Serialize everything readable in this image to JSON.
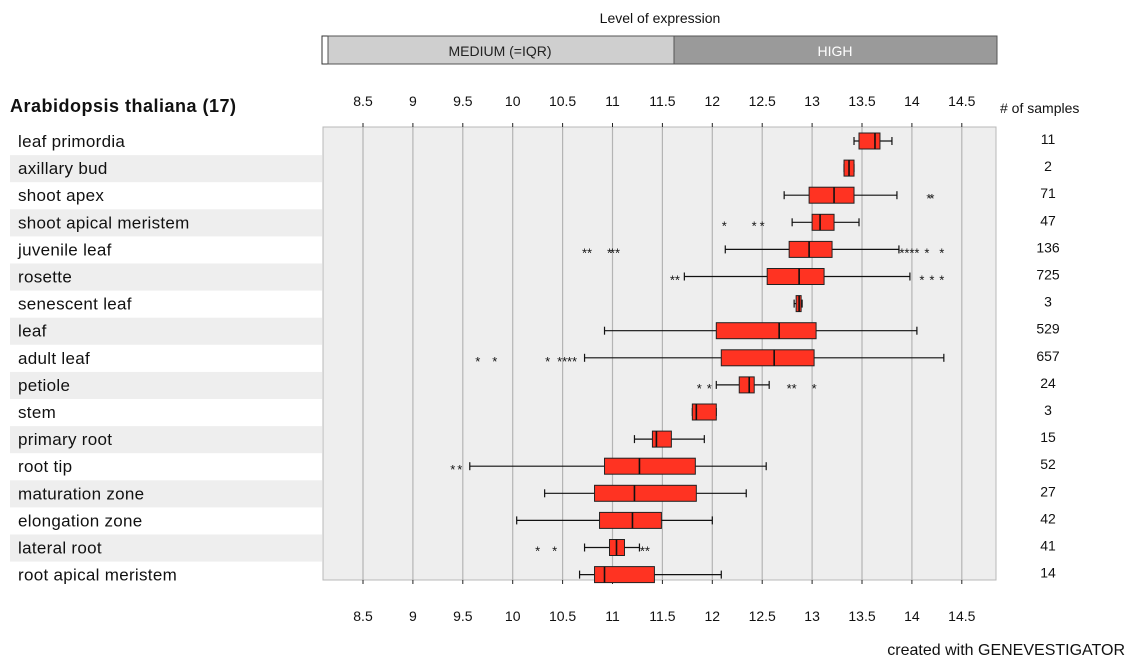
{
  "expression_bar": {
    "title": "Level of expression",
    "segments": [
      {
        "label": "",
        "color": "#ffffff"
      },
      {
        "label": "MEDIUM (=IQR)",
        "color": "#cfcfcf"
      },
      {
        "label": "HIGH",
        "color": "#9a9a9a"
      }
    ]
  },
  "footer": "created with GENEVESTIGATOR",
  "chart_data": {
    "type": "boxplot",
    "title": "Arabidopsis thaliana (17)",
    "samples_header": "# of samples",
    "xlim": [
      8.0,
      14.8
    ],
    "x_ticks": [
      8.5,
      9,
      9.5,
      10,
      10.5,
      11,
      11.5,
      12,
      12.5,
      13,
      13.5,
      14,
      14.5
    ],
    "x_tick_labels": [
      "8.5",
      "9",
      "9.5",
      "10",
      "10.5",
      "11",
      "11.5",
      "12",
      "12.5",
      "13",
      "13.5",
      "14",
      "14.5"
    ],
    "grid": true,
    "box_color": "#ff3322",
    "rows": [
      {
        "label": "leaf primordia",
        "n": "11",
        "min": 13.42,
        "q1": 13.47,
        "median": 13.63,
        "q3": 13.68,
        "max": 13.8,
        "outliers": []
      },
      {
        "label": "axillary bud",
        "n": "2",
        "min": 13.32,
        "q1": 13.32,
        "median": 13.37,
        "q3": 13.42,
        "max": 13.42,
        "outliers": []
      },
      {
        "label": "shoot apex",
        "n": "71",
        "min": 12.72,
        "q1": 12.97,
        "median": 13.22,
        "q3": 13.42,
        "max": 13.85,
        "outliers": [
          14.17,
          14.2
        ]
      },
      {
        "label": "shoot apical meristem",
        "n": "47",
        "min": 12.8,
        "q1": 13.0,
        "median": 13.08,
        "q3": 13.22,
        "max": 13.47,
        "outliers": [
          12.12,
          12.42,
          12.5
        ]
      },
      {
        "label": "juvenile leaf",
        "n": "136",
        "min": 12.13,
        "q1": 12.77,
        "median": 12.97,
        "q3": 13.2,
        "max": 13.87,
        "outliers": [
          10.72,
          10.77,
          10.97,
          11.0,
          11.05,
          13.9,
          13.95,
          14.0,
          14.05,
          14.15,
          14.3
        ]
      },
      {
        "label": "rosette",
        "n": "725",
        "min": 11.72,
        "q1": 12.55,
        "median": 12.87,
        "q3": 13.12,
        "max": 13.98,
        "outliers": [
          11.6,
          11.65,
          14.1,
          14.2,
          14.3
        ]
      },
      {
        "label": "senescent leaf",
        "n": "3",
        "min": 12.82,
        "q1": 12.84,
        "median": 12.87,
        "q3": 12.89,
        "max": 12.9,
        "outliers": []
      },
      {
        "label": "leaf",
        "n": "529",
        "min": 10.92,
        "q1": 12.04,
        "median": 12.67,
        "q3": 13.04,
        "max": 14.05,
        "outliers": []
      },
      {
        "label": "adult leaf",
        "n": "657",
        "min": 10.72,
        "q1": 12.09,
        "median": 12.62,
        "q3": 13.02,
        "max": 14.32,
        "outliers": [
          9.65,
          9.82,
          10.35,
          10.47,
          10.52,
          10.57,
          10.62
        ]
      },
      {
        "label": "petiole",
        "n": "24",
        "min": 12.04,
        "q1": 12.27,
        "median": 12.37,
        "q3": 12.42,
        "max": 12.57,
        "outliers": [
          11.87,
          11.97,
          12.77,
          12.82,
          13.02
        ]
      },
      {
        "label": "stem",
        "n": "3",
        "min": 11.8,
        "q1": 11.8,
        "median": 11.84,
        "q3": 12.04,
        "max": 12.04,
        "outliers": []
      },
      {
        "label": "primary root",
        "n": "15",
        "min": 11.22,
        "q1": 11.4,
        "median": 11.44,
        "q3": 11.59,
        "max": 11.92,
        "outliers": []
      },
      {
        "label": "root tip",
        "n": "52",
        "min": 9.57,
        "q1": 10.92,
        "median": 11.27,
        "q3": 11.83,
        "max": 12.54,
        "outliers": [
          9.4,
          9.47
        ]
      },
      {
        "label": "maturation zone",
        "n": "27",
        "min": 10.32,
        "q1": 10.82,
        "median": 11.22,
        "q3": 11.84,
        "max": 12.34,
        "outliers": []
      },
      {
        "label": "elongation zone",
        "n": "42",
        "min": 10.04,
        "q1": 10.87,
        "median": 11.2,
        "q3": 11.49,
        "max": 12.0,
        "outliers": []
      },
      {
        "label": "lateral root",
        "n": "41",
        "min": 10.72,
        "q1": 10.97,
        "median": 11.04,
        "q3": 11.12,
        "max": 11.27,
        "outliers": [
          10.25,
          10.42,
          11.3,
          11.35
        ]
      },
      {
        "label": "root apical meristem",
        "n": "14",
        "min": 10.67,
        "q1": 10.82,
        "median": 10.92,
        "q3": 11.42,
        "max": 12.09,
        "outliers": []
      }
    ]
  }
}
